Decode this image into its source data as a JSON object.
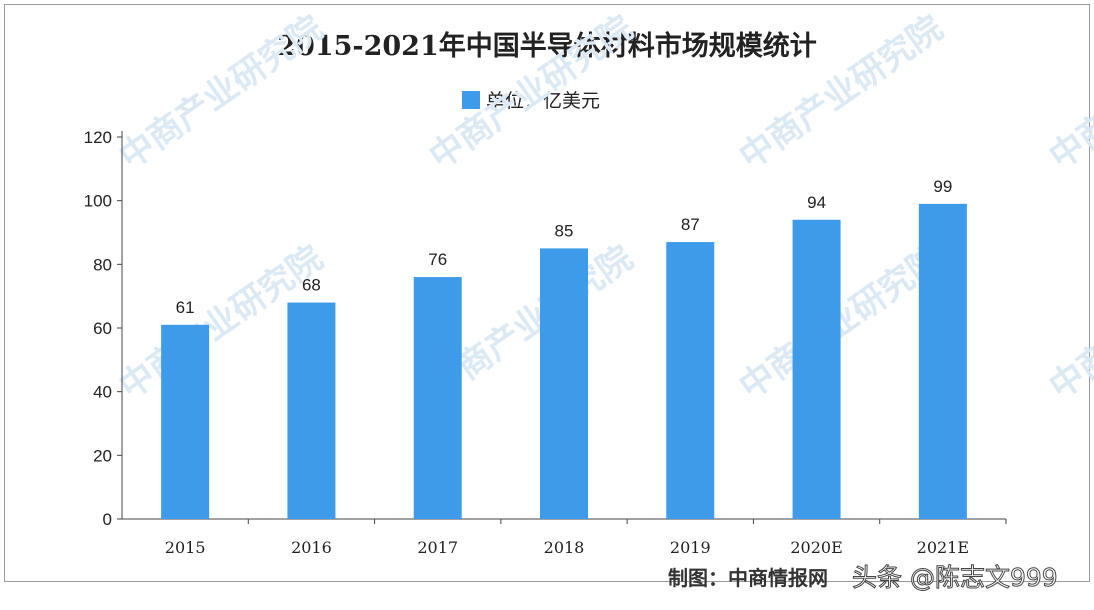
{
  "chart_data": {
    "type": "bar",
    "title": "2015-2021年中国半导体材料市场规模统计",
    "legend": "单位：亿美元",
    "legend_position": "top",
    "categories": [
      "2015",
      "2016",
      "2017",
      "2018",
      "2019",
      "2020E",
      "2021E"
    ],
    "values": [
      61,
      68,
      76,
      85,
      87,
      94,
      99
    ],
    "yticks": [
      0,
      20,
      40,
      60,
      80,
      100,
      120
    ],
    "ylim": [
      0,
      120
    ],
    "grid": false,
    "bar_color": "#3d9be9"
  },
  "source": "制图：中商情报网",
  "watermark": "头条 @陈志文999",
  "background_watermark": "中商产业研究院"
}
